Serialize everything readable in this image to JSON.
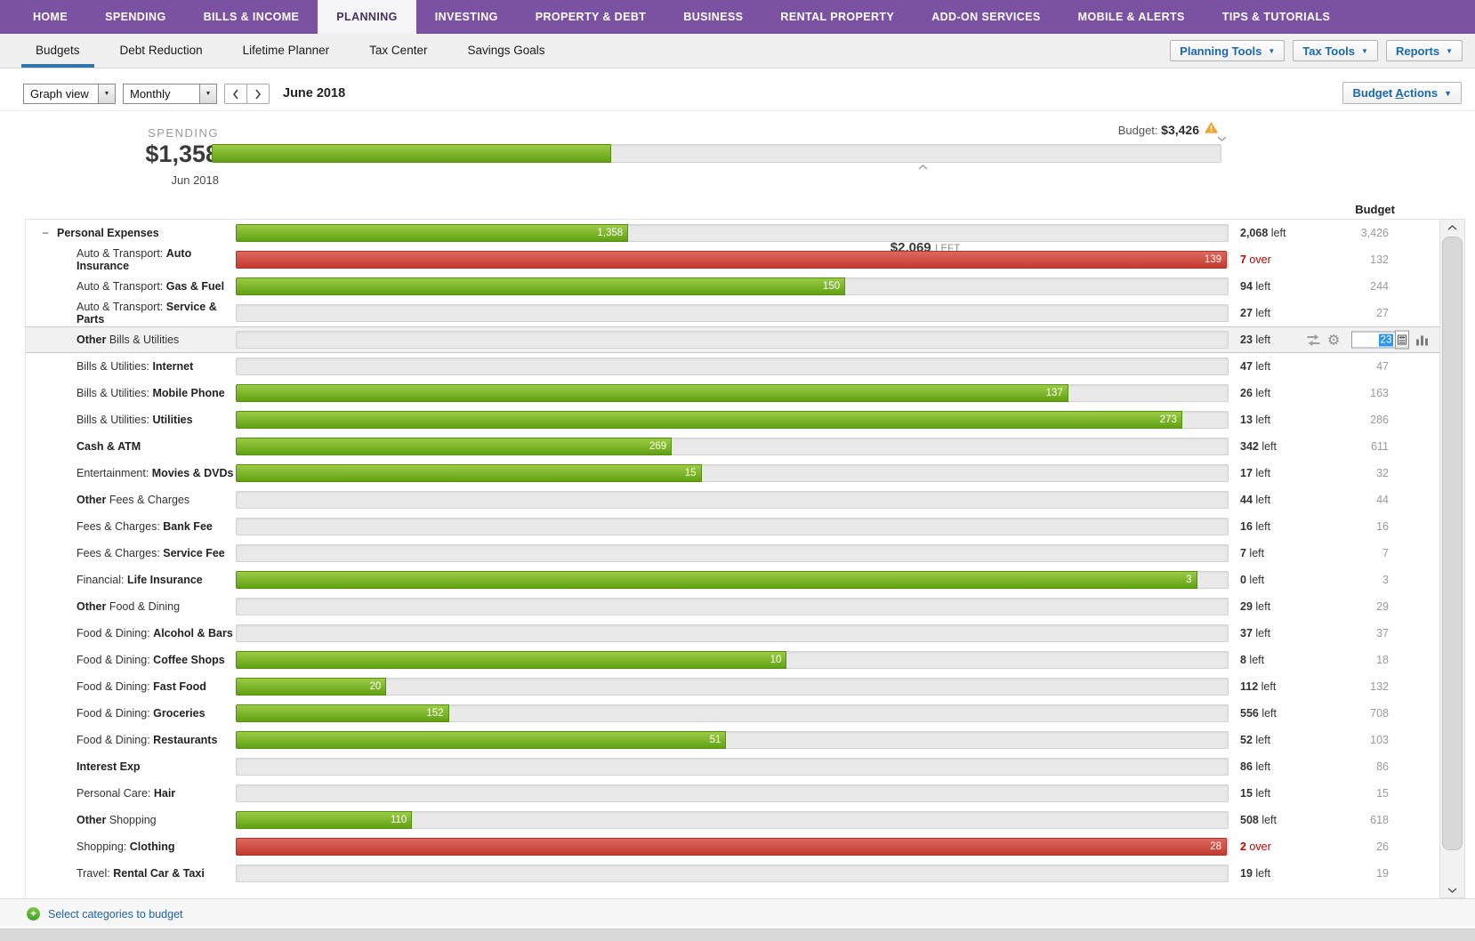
{
  "nav": {
    "tabs": [
      "HOME",
      "SPENDING",
      "BILLS & INCOME",
      "PLANNING",
      "INVESTING",
      "PROPERTY & DEBT",
      "BUSINESS",
      "RENTAL PROPERTY",
      "ADD-ON SERVICES",
      "MOBILE & ALERTS",
      "TIPS & TUTORIALS"
    ],
    "active": "PLANNING"
  },
  "subnav": {
    "tabs": [
      "Budgets",
      "Debt Reduction",
      "Lifetime Planner",
      "Tax Center",
      "Savings Goals"
    ],
    "active": "Budgets",
    "tools": [
      "Planning Tools",
      "Tax Tools",
      "Reports"
    ]
  },
  "toolbar": {
    "view_select": "Graph view",
    "period_select": "Monthly",
    "period_label": "June 2018",
    "actions": {
      "pre": "Budget ",
      "mnemonic": "A",
      "post": "ctions"
    }
  },
  "summary": {
    "spending_label": "SPENDING",
    "spending_value": "$1,358",
    "period": "Jun 2018",
    "budget_label": "Budget:",
    "budget_value": "$3,426",
    "remaining_value": "$2,069",
    "remaining_label": "LEFT",
    "percent": 39.6
  },
  "table": {
    "budget_header": "Budget",
    "rows": [
      {
        "seg": [
          [
            "Personal Expenses",
            1
          ]
        ],
        "parent": 1,
        "type": "g",
        "pct": 39.6,
        "bar": "1,358",
        "amt": "2,068",
        "word": "left",
        "over": 0,
        "budget": "3,426"
      },
      {
        "seg": [
          [
            "Auto & Transport: ",
            0
          ],
          [
            "Auto Insurance",
            1
          ]
        ],
        "type": "r",
        "pct": 100,
        "bar": "139",
        "amt": "7",
        "word": "over",
        "over": 1,
        "budget": "132"
      },
      {
        "seg": [
          [
            "Auto & Transport: ",
            0
          ],
          [
            "Gas & Fuel",
            1
          ]
        ],
        "type": "g",
        "pct": 61.5,
        "bar": "150",
        "amt": "94",
        "word": "left",
        "over": 0,
        "budget": "244"
      },
      {
        "seg": [
          [
            "Auto & Transport: ",
            0
          ],
          [
            "Service & Parts",
            1
          ]
        ],
        "type": "e",
        "amt": "27",
        "word": "left",
        "over": 0,
        "budget": "27"
      },
      {
        "seg": [
          [
            "Other ",
            1
          ],
          [
            "Bills & Utilities",
            0
          ]
        ],
        "type": "e",
        "amt": "23",
        "word": "left",
        "over": 0,
        "selected": 1,
        "edit_value": "23"
      },
      {
        "seg": [
          [
            "Bills & Utilities: ",
            0
          ],
          [
            "Internet",
            1
          ]
        ],
        "type": "e",
        "amt": "47",
        "word": "left",
        "over": 0,
        "budget": "47"
      },
      {
        "seg": [
          [
            "Bills & Utilities: ",
            0
          ],
          [
            "Mobile Phone",
            1
          ]
        ],
        "type": "g",
        "pct": 84,
        "bar": "137",
        "amt": "26",
        "word": "left",
        "over": 0,
        "budget": "163"
      },
      {
        "seg": [
          [
            "Bills & Utilities: ",
            0
          ],
          [
            "Utilities",
            1
          ]
        ],
        "type": "g",
        "pct": 95.5,
        "bar": "273",
        "amt": "13",
        "word": "left",
        "over": 0,
        "budget": "286"
      },
      {
        "seg": [
          [
            "Cash & ATM",
            1
          ]
        ],
        "type": "g",
        "pct": 44,
        "bar": "269",
        "amt": "342",
        "word": "left",
        "over": 0,
        "budget": "611"
      },
      {
        "seg": [
          [
            "Entertainment: ",
            0
          ],
          [
            "Movies & DVDs",
            1
          ]
        ],
        "type": "g",
        "pct": 47,
        "bar": "15",
        "amt": "17",
        "word": "left",
        "over": 0,
        "budget": "32"
      },
      {
        "seg": [
          [
            "Other ",
            1
          ],
          [
            "Fees & Charges",
            0
          ]
        ],
        "type": "e",
        "amt": "44",
        "word": "left",
        "over": 0,
        "budget": "44"
      },
      {
        "seg": [
          [
            "Fees & Charges: ",
            0
          ],
          [
            "Bank Fee",
            1
          ]
        ],
        "type": "e",
        "amt": "16",
        "word": "left",
        "over": 0,
        "budget": "16"
      },
      {
        "seg": [
          [
            "Fees & Charges: ",
            0
          ],
          [
            "Service Fee",
            1
          ]
        ],
        "type": "e",
        "amt": "7",
        "word": "left",
        "over": 0,
        "budget": "7"
      },
      {
        "seg": [
          [
            "Financial: ",
            0
          ],
          [
            "Life Insurance",
            1
          ]
        ],
        "type": "g",
        "pct": 97,
        "bar": "3",
        "amt": "0",
        "word": "left",
        "over": 0,
        "budget": "3"
      },
      {
        "seg": [
          [
            "Other ",
            1
          ],
          [
            "Food & Dining",
            0
          ]
        ],
        "type": "e",
        "amt": "29",
        "word": "left",
        "over": 0,
        "budget": "29"
      },
      {
        "seg": [
          [
            "Food & Dining: ",
            0
          ],
          [
            "Alcohol & Bars",
            1
          ]
        ],
        "type": "e",
        "amt": "37",
        "word": "left",
        "over": 0,
        "budget": "37"
      },
      {
        "seg": [
          [
            "Food & Dining: ",
            0
          ],
          [
            "Coffee Shops",
            1
          ]
        ],
        "type": "g",
        "pct": 55.6,
        "bar": "10",
        "amt": "8",
        "word": "left",
        "over": 0,
        "budget": "18"
      },
      {
        "seg": [
          [
            "Food & Dining: ",
            0
          ],
          [
            "Fast Food",
            1
          ]
        ],
        "type": "g",
        "pct": 15.2,
        "bar": "20",
        "amt": "112",
        "word": "left",
        "over": 0,
        "budget": "132"
      },
      {
        "seg": [
          [
            "Food & Dining: ",
            0
          ],
          [
            "Groceries",
            1
          ]
        ],
        "type": "g",
        "pct": 21.5,
        "bar": "152",
        "amt": "556",
        "word": "left",
        "over": 0,
        "budget": "708"
      },
      {
        "seg": [
          [
            "Food & Dining: ",
            0
          ],
          [
            "Restaurants",
            1
          ]
        ],
        "type": "g",
        "pct": 49.5,
        "bar": "51",
        "amt": "52",
        "word": "left",
        "over": 0,
        "budget": "103"
      },
      {
        "seg": [
          [
            "Interest Exp",
            1
          ]
        ],
        "type": "e",
        "amt": "86",
        "word": "left",
        "over": 0,
        "budget": "86"
      },
      {
        "seg": [
          [
            "Personal Care: ",
            0
          ],
          [
            "Hair",
            1
          ]
        ],
        "type": "e",
        "amt": "15",
        "word": "left",
        "over": 0,
        "budget": "15"
      },
      {
        "seg": [
          [
            "Other ",
            1
          ],
          [
            "Shopping",
            0
          ]
        ],
        "type": "g",
        "pct": 17.8,
        "bar": "110",
        "amt": "508",
        "word": "left",
        "over": 0,
        "budget": "618"
      },
      {
        "seg": [
          [
            "Shopping: ",
            0
          ],
          [
            "Clothing",
            1
          ]
        ],
        "type": "r",
        "pct": 100,
        "bar": "28",
        "amt": "2",
        "word": "over",
        "over": 1,
        "budget": "26"
      },
      {
        "seg": [
          [
            "Travel: ",
            0
          ],
          [
            "Rental Car & Taxi",
            1
          ]
        ],
        "type": "e",
        "amt": "19",
        "word": "left",
        "over": 0,
        "budget": "19"
      }
    ]
  },
  "footer": {
    "label": "Select categories to budget"
  },
  "colors": {
    "nav_purple": "#7b51a1",
    "tab_underline_blue": "#2f76ae",
    "link_blue": "#1a68ae",
    "bar_green": "#60a113",
    "bar_red": "#c43a30",
    "over_red": "#c00000",
    "warning_orange": "#f0a632"
  }
}
